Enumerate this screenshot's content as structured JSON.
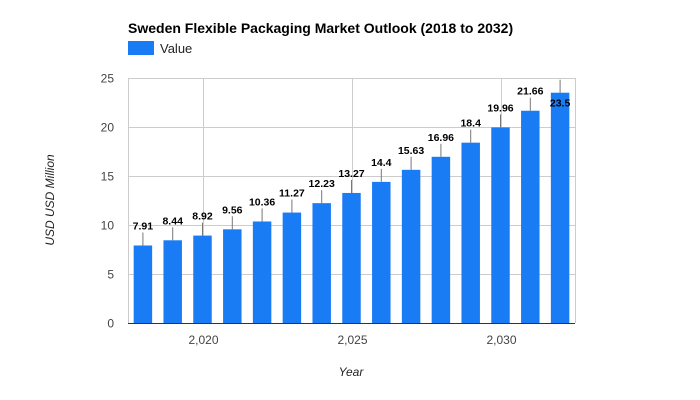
{
  "chart_data": {
    "type": "bar",
    "title": "Sweden Flexible Packaging Market Outlook (2018 to 2032)",
    "legend": [
      "Value"
    ],
    "legend_position": "top-left",
    "xlabel": "Year",
    "ylabel": "USD USD Million",
    "x": [
      2018,
      2019,
      2020,
      2021,
      2022,
      2023,
      2024,
      2025,
      2026,
      2027,
      2028,
      2029,
      2030,
      2031,
      2032
    ],
    "values": [
      7.91,
      8.44,
      8.92,
      9.56,
      10.36,
      11.27,
      12.23,
      13.27,
      14.4,
      15.63,
      16.96,
      18.4,
      19.96,
      21.66,
      23.5
    ],
    "data_labels": [
      "7.91",
      "8.44",
      "8.92",
      "9.56",
      "10.36",
      "11.27",
      "12.23",
      "13.27",
      "14.4",
      "15.63",
      "16.96",
      "18.4",
      "19.96",
      "21.66",
      "23.5"
    ],
    "x_ticks": [
      2020,
      2025,
      2030
    ],
    "x_tick_labels": [
      "2,020",
      "2,025",
      "2,030"
    ],
    "y_ticks": [
      0,
      5,
      10,
      15,
      20,
      25
    ],
    "y_tick_labels": [
      "0",
      "5",
      "10",
      "15",
      "20",
      "25"
    ],
    "ylim": [
      0,
      25
    ],
    "xlim": [
      2017.5,
      2032.5
    ],
    "grid": true,
    "bar_color": "#1a7cf5",
    "error_bar_color": "#777777"
  }
}
